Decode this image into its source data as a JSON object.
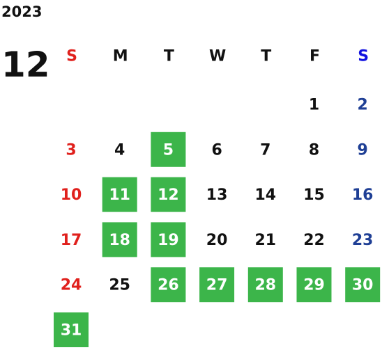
{
  "header": {
    "year": "2023",
    "month": "12"
  },
  "weekdays": [
    "S",
    "M",
    "T",
    "W",
    "T",
    "F",
    "S"
  ],
  "weeks": [
    [
      null,
      null,
      null,
      null,
      null,
      {
        "day": 1,
        "highlighted": false
      },
      {
        "day": 2,
        "highlighted": false
      }
    ],
    [
      {
        "day": 3,
        "highlighted": false
      },
      {
        "day": 4,
        "highlighted": false
      },
      {
        "day": 5,
        "highlighted": true
      },
      {
        "day": 6,
        "highlighted": false
      },
      {
        "day": 7,
        "highlighted": false
      },
      {
        "day": 8,
        "highlighted": false
      },
      {
        "day": 9,
        "highlighted": false
      }
    ],
    [
      {
        "day": 10,
        "highlighted": false
      },
      {
        "day": 11,
        "highlighted": true
      },
      {
        "day": 12,
        "highlighted": true
      },
      {
        "day": 13,
        "highlighted": false
      },
      {
        "day": 14,
        "highlighted": false
      },
      {
        "day": 15,
        "highlighted": false
      },
      {
        "day": 16,
        "highlighted": false
      }
    ],
    [
      {
        "day": 17,
        "highlighted": false
      },
      {
        "day": 18,
        "highlighted": true
      },
      {
        "day": 19,
        "highlighted": true
      },
      {
        "day": 20,
        "highlighted": false
      },
      {
        "day": 21,
        "highlighted": false
      },
      {
        "day": 22,
        "highlighted": false
      },
      {
        "day": 23,
        "highlighted": false
      }
    ],
    [
      {
        "day": 24,
        "highlighted": false
      },
      {
        "day": 25,
        "highlighted": false
      },
      {
        "day": 26,
        "highlighted": true
      },
      {
        "day": 27,
        "highlighted": true
      },
      {
        "day": 28,
        "highlighted": true
      },
      {
        "day": 29,
        "highlighted": true
      },
      {
        "day": 30,
        "highlighted": true
      }
    ],
    [
      {
        "day": 31,
        "highlighted": true
      },
      null,
      null,
      null,
      null,
      null,
      null
    ]
  ]
}
